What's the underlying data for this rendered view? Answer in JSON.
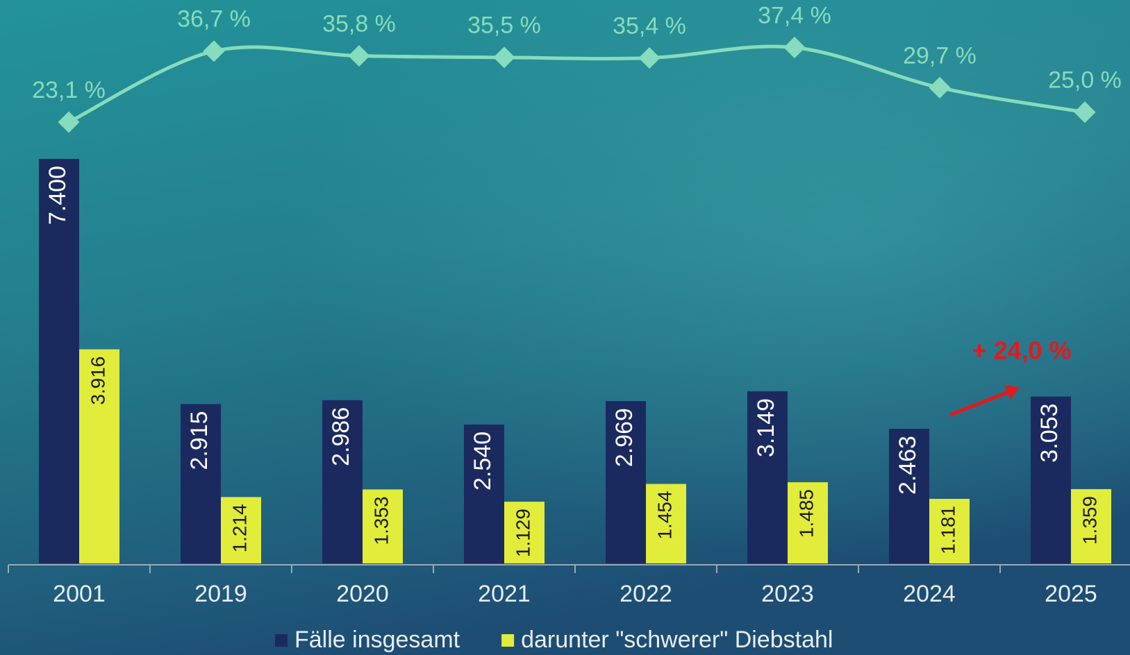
{
  "chart_data": {
    "type": "bar",
    "categories": [
      "2001",
      "2019",
      "2020",
      "2021",
      "2022",
      "2023",
      "2024",
      "2025"
    ],
    "series": [
      {
        "name": "Fälle insgesamt",
        "color": "#1b2a5e",
        "values": [
          7400,
          2915,
          2986,
          2540,
          2969,
          3149,
          2463,
          3053
        ],
        "value_labels": [
          "7.400",
          "2.915",
          "2.986",
          "2.540",
          "2.969",
          "3.149",
          "2.463",
          "3.053"
        ]
      },
      {
        "name": "darunter \"schwerer\" Diebstahl",
        "color": "#e2ec3a",
        "values": [
          3916,
          1214,
          1353,
          1129,
          1454,
          1485,
          1181,
          1359
        ],
        "value_labels": [
          "3.916",
          "1.214",
          "1.353",
          "1.129",
          "1.454",
          "1.485",
          "1.181",
          "1.359"
        ]
      },
      {
        "type": "line",
        "color": "#86dcbc",
        "values": [
          23.1,
          36.7,
          35.8,
          35.5,
          35.4,
          37.4,
          29.7,
          25.0
        ],
        "value_labels": [
          "23,1 %",
          "36,7 %",
          "35,8 %",
          "35,5 %",
          "35,4 %",
          "37,4 %",
          "29,7 %",
          "25,0 %"
        ]
      }
    ],
    "annotation": "+ 24,0 %",
    "annotation_color": "#e01b1b",
    "legend": "bottom"
  }
}
